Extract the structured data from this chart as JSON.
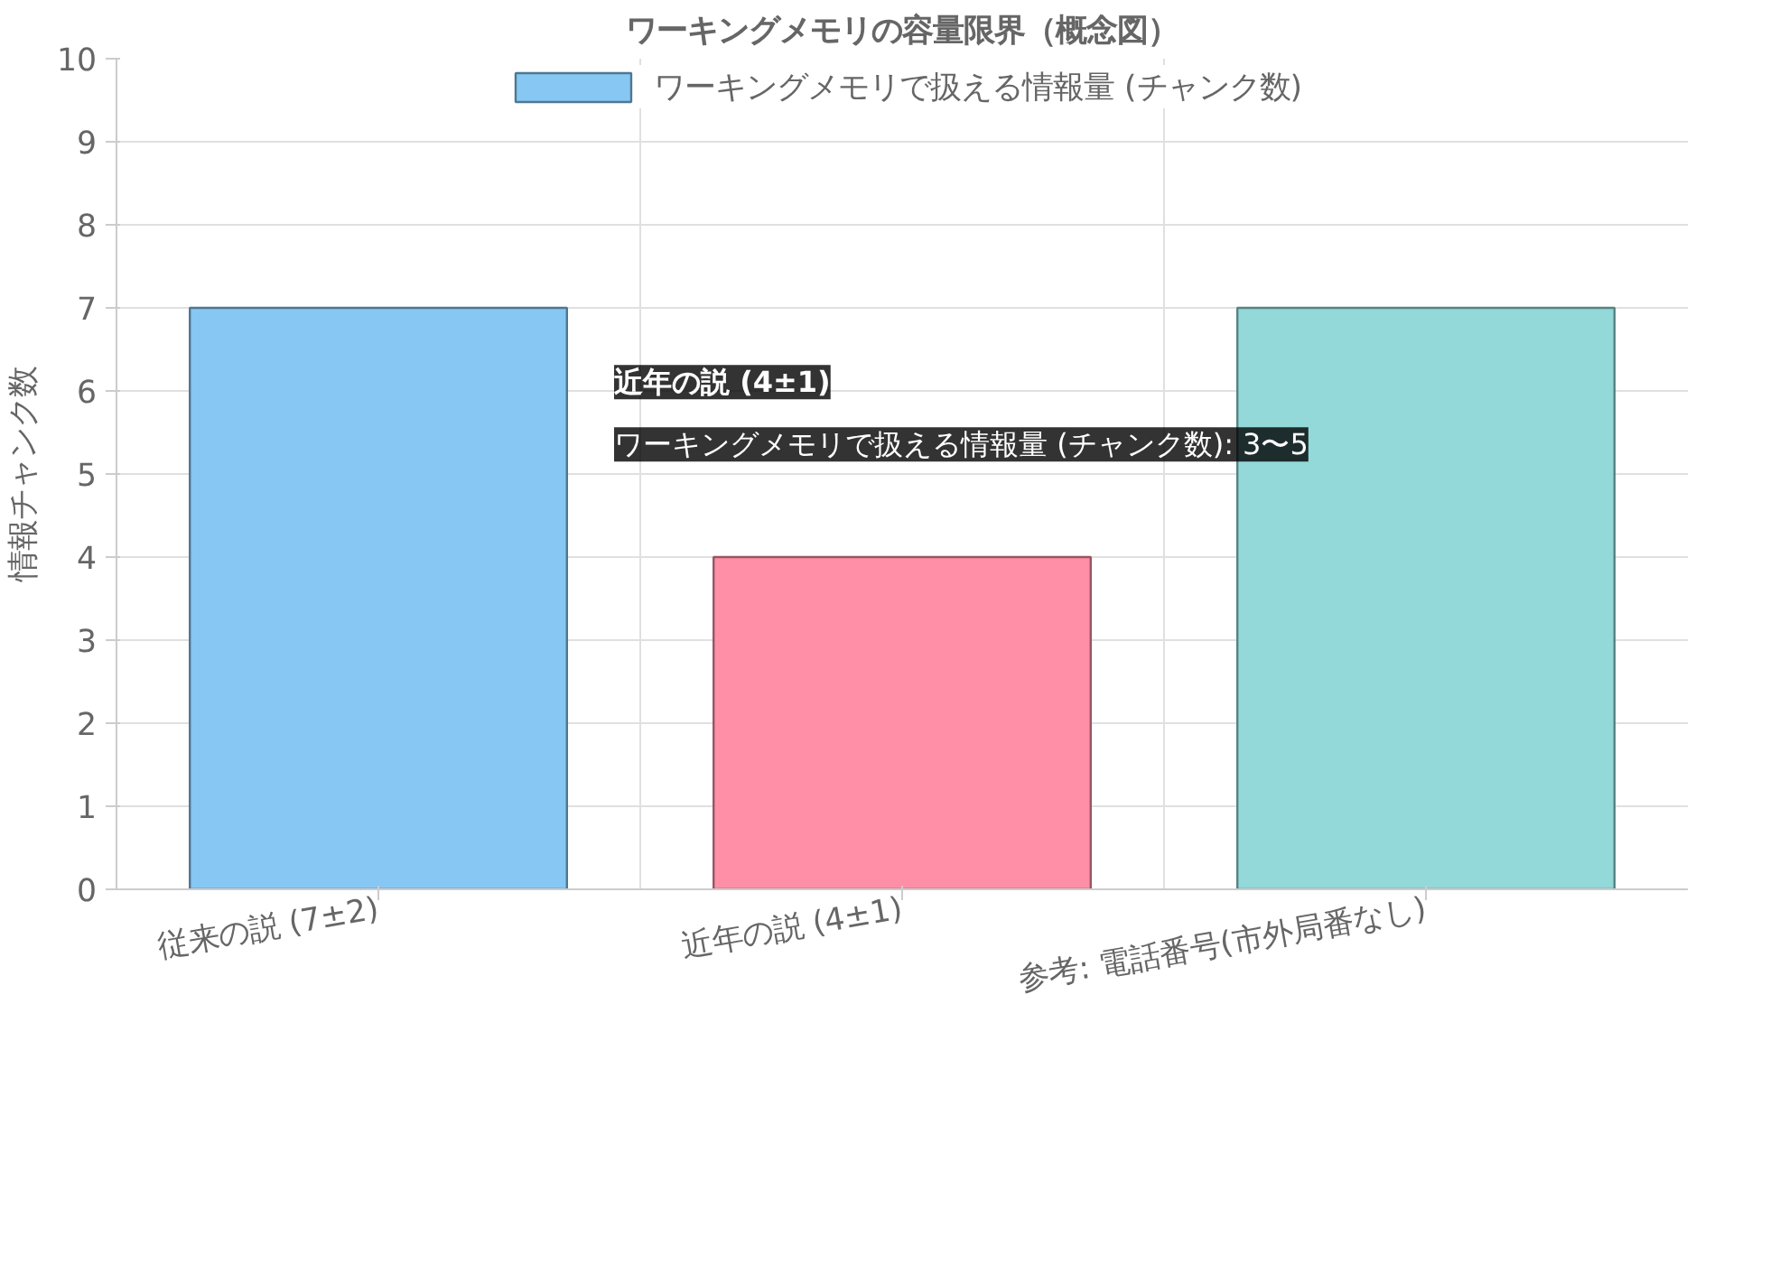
{
  "chart_data": {
    "type": "bar",
    "title": "ワーキングメモリの容量限界（概念図）",
    "ylabel": "情報チャンク数",
    "categories": [
      "従来の説 (7±2)",
      "近年の説 (4±1)",
      "参考: 電話番号(市外局番なし)"
    ],
    "series": [
      {
        "name": "ワーキングメモリで扱える情報量 (チャンク数)",
        "colors": [
          "#86c7f3",
          "#ff8fa6",
          "#93d9d9"
        ],
        "values": [
          7,
          4,
          7
        ]
      }
    ],
    "ylim": [
      0,
      10
    ],
    "yticks": [
      0,
      1,
      2,
      3,
      4,
      5,
      6,
      7,
      8,
      9,
      10
    ],
    "grid": true,
    "legend": "top",
    "annotations": [
      "近年の説 (4±1)",
      "ワーキングメモリで扱える情報量 (チャンク数): 3〜5"
    ]
  }
}
